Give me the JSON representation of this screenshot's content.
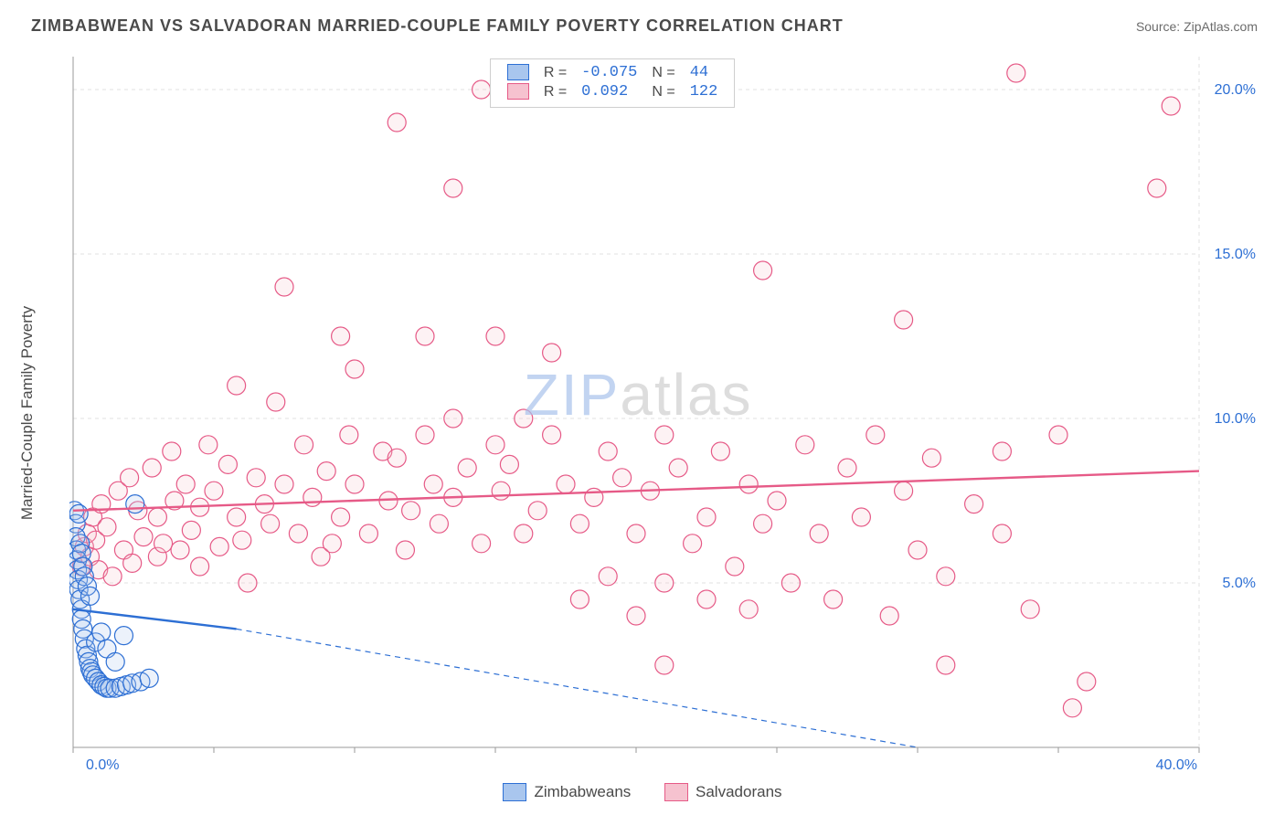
{
  "title": "ZIMBABWEAN VS SALVADORAN MARRIED-COUPLE FAMILY POVERTY CORRELATION CHART",
  "source_label": "Source: ZipAtlas.com",
  "ylabel": "Married-Couple Family Poverty",
  "watermark": {
    "zip": "ZIP",
    "atlas": "atlas"
  },
  "chart": {
    "type": "scatter",
    "background_color": "#ffffff",
    "grid_color": "#e2e2e2",
    "axis_color": "#9a9a9a",
    "tick_label_color": "#2d6fd4",
    "xlim": [
      0,
      40
    ],
    "ylim": [
      0,
      21
    ],
    "xticks": [
      0,
      5,
      10,
      15,
      20,
      25,
      30,
      35,
      40
    ],
    "xtick_labels": {
      "0": "0.0%",
      "40": "40.0%"
    },
    "yticks": [
      5,
      10,
      15,
      20
    ],
    "ytick_labels": {
      "5": "5.0%",
      "10": "10.0%",
      "15": "15.0%",
      "20": "20.0%"
    },
    "marker_radius": 10,
    "marker_stroke_width": 1.2,
    "marker_fill_opacity": 0.22,
    "trend_line_width": 2.4
  },
  "series": {
    "zimbabweans": {
      "label": "Zimbabweans",
      "color_fill": "#a9c6ee",
      "color_stroke": "#2d6fd4",
      "R": "-0.075",
      "N": "44",
      "trend": {
        "x1": 0,
        "y1": 4.2,
        "x2": 5.8,
        "y2": 3.6,
        "dash_to_x": 30,
        "dash_to_y": 0.0
      },
      "points": [
        [
          0.05,
          7.2
        ],
        [
          0.1,
          6.8
        ],
        [
          0.1,
          6.4
        ],
        [
          0.12,
          6.0
        ],
        [
          0.15,
          5.7
        ],
        [
          0.15,
          5.4
        ],
        [
          0.18,
          5.1
        ],
        [
          0.2,
          7.1
        ],
        [
          0.2,
          4.8
        ],
        [
          0.25,
          4.5
        ],
        [
          0.25,
          6.2
        ],
        [
          0.3,
          4.2
        ],
        [
          0.3,
          3.9
        ],
        [
          0.3,
          5.9
        ],
        [
          0.35,
          3.6
        ],
        [
          0.35,
          5.5
        ],
        [
          0.4,
          3.3
        ],
        [
          0.4,
          5.2
        ],
        [
          0.45,
          3.0
        ],
        [
          0.5,
          2.8
        ],
        [
          0.5,
          4.9
        ],
        [
          0.55,
          2.6
        ],
        [
          0.6,
          2.4
        ],
        [
          0.6,
          4.6
        ],
        [
          0.65,
          2.3
        ],
        [
          0.7,
          2.2
        ],
        [
          0.8,
          2.1
        ],
        [
          0.9,
          2.0
        ],
        [
          1.0,
          1.9
        ],
        [
          1.1,
          1.85
        ],
        [
          1.2,
          1.8
        ],
        [
          1.3,
          1.8
        ],
        [
          1.5,
          1.8
        ],
        [
          1.7,
          1.85
        ],
        [
          1.9,
          1.9
        ],
        [
          2.1,
          1.95
        ],
        [
          2.4,
          2.0
        ],
        [
          2.7,
          2.1
        ],
        [
          0.8,
          3.2
        ],
        [
          1.0,
          3.5
        ],
        [
          1.2,
          3.0
        ],
        [
          1.5,
          2.6
        ],
        [
          1.8,
          3.4
        ],
        [
          2.2,
          7.4
        ]
      ]
    },
    "salvadorans": {
      "label": "Salvadorans",
      "color_fill": "#f6c2cf",
      "color_stroke": "#e65a87",
      "R": "0.092",
      "N": "122",
      "trend": {
        "x1": 0,
        "y1": 7.2,
        "x2": 40,
        "y2": 8.4
      },
      "points": [
        [
          0.3,
          5.5
        ],
        [
          0.4,
          6.1
        ],
        [
          0.5,
          6.5
        ],
        [
          0.6,
          5.8
        ],
        [
          0.7,
          7.0
        ],
        [
          0.8,
          6.3
        ],
        [
          0.9,
          5.4
        ],
        [
          1.0,
          7.4
        ],
        [
          1.2,
          6.7
        ],
        [
          1.4,
          5.2
        ],
        [
          1.6,
          7.8
        ],
        [
          1.8,
          6.0
        ],
        [
          2.0,
          8.2
        ],
        [
          2.1,
          5.6
        ],
        [
          2.3,
          7.2
        ],
        [
          2.5,
          6.4
        ],
        [
          2.8,
          8.5
        ],
        [
          3.0,
          5.8
        ],
        [
          3.0,
          7.0
        ],
        [
          3.2,
          6.2
        ],
        [
          3.5,
          9.0
        ],
        [
          3.6,
          7.5
        ],
        [
          3.8,
          6.0
        ],
        [
          4.0,
          8.0
        ],
        [
          4.2,
          6.6
        ],
        [
          4.5,
          7.3
        ],
        [
          4.5,
          5.5
        ],
        [
          4.8,
          9.2
        ],
        [
          5.0,
          7.8
        ],
        [
          5.2,
          6.1
        ],
        [
          5.5,
          8.6
        ],
        [
          5.8,
          7.0
        ],
        [
          5.8,
          11.0
        ],
        [
          6.0,
          6.3
        ],
        [
          6.2,
          5.0
        ],
        [
          6.5,
          8.2
        ],
        [
          6.8,
          7.4
        ],
        [
          7.0,
          6.8
        ],
        [
          7.2,
          10.5
        ],
        [
          7.5,
          8.0
        ],
        [
          7.5,
          14.0
        ],
        [
          8.0,
          6.5
        ],
        [
          8.2,
          9.2
        ],
        [
          8.5,
          7.6
        ],
        [
          8.8,
          5.8
        ],
        [
          9.0,
          8.4
        ],
        [
          9.2,
          6.2
        ],
        [
          9.5,
          7.0
        ],
        [
          9.5,
          12.5
        ],
        [
          9.8,
          9.5
        ],
        [
          10.0,
          8.0
        ],
        [
          10.0,
          11.5
        ],
        [
          10.5,
          6.5
        ],
        [
          11.0,
          9.0
        ],
        [
          11.2,
          7.5
        ],
        [
          11.5,
          8.8
        ],
        [
          11.5,
          19.0
        ],
        [
          11.8,
          6.0
        ],
        [
          12.0,
          7.2
        ],
        [
          12.5,
          9.5
        ],
        [
          12.5,
          12.5
        ],
        [
          12.8,
          8.0
        ],
        [
          13.5,
          17.0
        ],
        [
          13.0,
          6.8
        ],
        [
          13.5,
          7.6
        ],
        [
          13.5,
          10.0
        ],
        [
          14.0,
          8.5
        ],
        [
          14.5,
          6.2
        ],
        [
          15.0,
          9.2
        ],
        [
          14.5,
          20.0
        ],
        [
          15.0,
          12.5
        ],
        [
          15.2,
          7.8
        ],
        [
          15.5,
          8.6
        ],
        [
          16.0,
          6.5
        ],
        [
          16.0,
          10.0
        ],
        [
          16.5,
          7.2
        ],
        [
          17.0,
          9.5
        ],
        [
          17.0,
          12.0
        ],
        [
          17.5,
          8.0
        ],
        [
          18.0,
          6.8
        ],
        [
          18.0,
          4.5
        ],
        [
          18.5,
          7.6
        ],
        [
          19.0,
          9.0
        ],
        [
          19.0,
          5.2
        ],
        [
          19.5,
          8.2
        ],
        [
          20.0,
          6.5
        ],
        [
          20.0,
          4.0
        ],
        [
          20.5,
          7.8
        ],
        [
          21.0,
          9.5
        ],
        [
          21.0,
          5.0
        ],
        [
          21.0,
          2.5
        ],
        [
          21.5,
          8.5
        ],
        [
          22.0,
          6.2
        ],
        [
          22.5,
          7.0
        ],
        [
          22.5,
          4.5
        ],
        [
          23.0,
          9.0
        ],
        [
          23.5,
          5.5
        ],
        [
          24.0,
          8.0
        ],
        [
          24.0,
          4.2
        ],
        [
          24.5,
          6.8
        ],
        [
          25.0,
          7.5
        ],
        [
          24.5,
          14.5
        ],
        [
          25.5,
          5.0
        ],
        [
          26.0,
          9.2
        ],
        [
          26.5,
          6.5
        ],
        [
          27.0,
          4.5
        ],
        [
          27.5,
          8.5
        ],
        [
          28.0,
          7.0
        ],
        [
          28.5,
          9.5
        ],
        [
          29.0,
          4.0
        ],
        [
          29.5,
          7.8
        ],
        [
          29.5,
          13.0
        ],
        [
          30.0,
          6.0
        ],
        [
          30.5,
          8.8
        ],
        [
          31.0,
          5.2
        ],
        [
          32.0,
          7.4
        ],
        [
          31.0,
          2.5
        ],
        [
          33.0,
          9.0
        ],
        [
          33.0,
          6.5
        ],
        [
          34.0,
          4.2
        ],
        [
          35.0,
          9.5
        ],
        [
          33.5,
          20.5
        ],
        [
          35.5,
          1.2
        ],
        [
          36.0,
          2.0
        ],
        [
          38.5,
          17.0
        ],
        [
          39.0,
          19.5
        ]
      ]
    }
  },
  "legend": {
    "items": [
      "zimbabweans",
      "salvadorans"
    ]
  }
}
